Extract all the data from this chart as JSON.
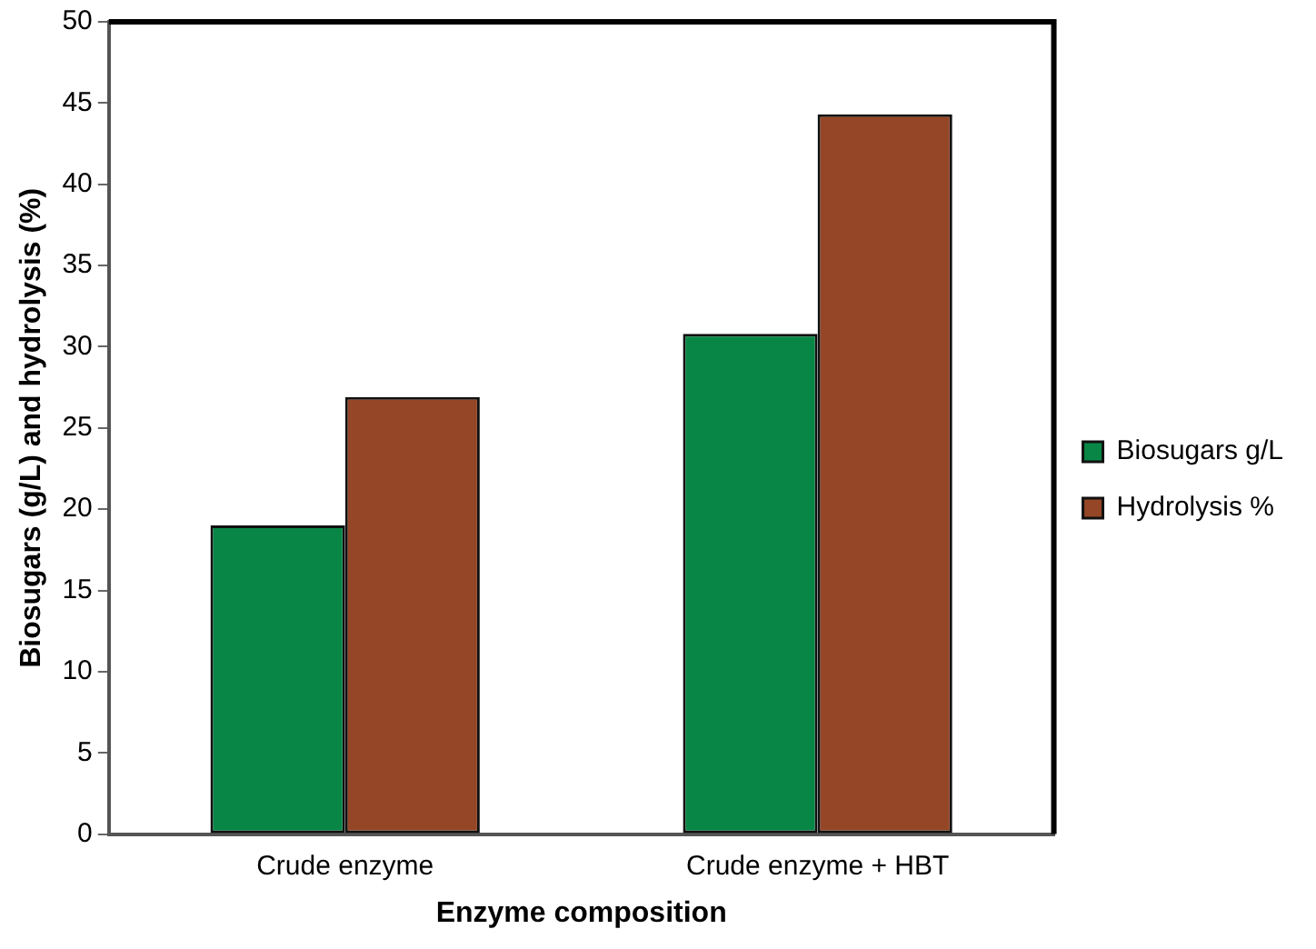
{
  "chart_data": {
    "type": "bar",
    "xlabel": "Enzyme composition",
    "ylabel": "Biosugars (g/L) and hydrolysis (%)",
    "categories": [
      "Crude enzyme",
      "Crude enzyme + HBT"
    ],
    "series": [
      {
        "name": "Biosugars g/L",
        "color": "#088646",
        "values": [
          19.0,
          30.8
        ]
      },
      {
        "name": "Hydrolysis %",
        "color": "#944626",
        "values": [
          26.9,
          44.3
        ]
      }
    ],
    "ylim": [
      0,
      50
    ],
    "yticks": [
      0,
      5,
      10,
      15,
      20,
      25,
      30,
      35,
      40,
      45,
      50
    ],
    "grid": false,
    "legend": "right"
  }
}
